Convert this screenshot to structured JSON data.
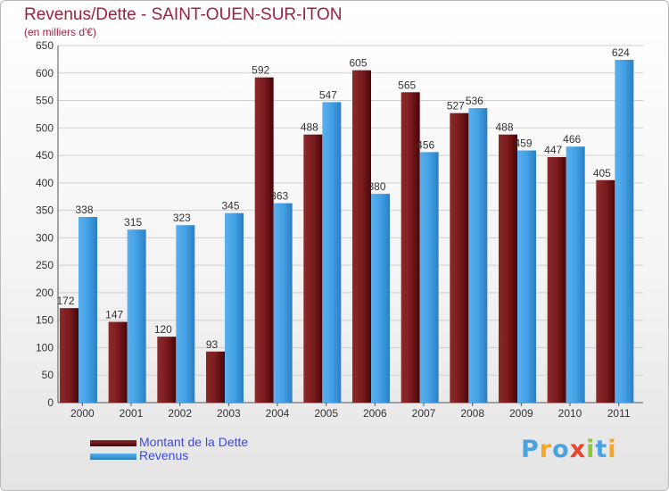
{
  "title": "Revenus/Dette - SAINT-OUEN-SUR-ITON",
  "subtitle": "(en milliers d'€)",
  "colors": {
    "dette": "#6b0f12",
    "revenus": "#3e9ae0",
    "title": "#9a2142",
    "legend_text": "#3d4bd9",
    "grid": "#cfcfcf"
  },
  "legend": {
    "dette_label": "Montant de la Dette",
    "revenus_label": "Revenus"
  },
  "logo": {
    "text": "Proxiti",
    "letters": [
      {
        "ch": "P",
        "color": "#4aa3df"
      },
      {
        "ch": "r",
        "color": "#f5a623"
      },
      {
        "ch": "o",
        "color": "#4aa3df"
      },
      {
        "ch": "x",
        "color": "#e8452c"
      },
      {
        "ch": "i",
        "color": "#8dc63f"
      },
      {
        "ch": "t",
        "color": "#4aa3df"
      },
      {
        "ch": "i",
        "color": "#f5a623"
      }
    ]
  },
  "chart_data": {
    "type": "bar",
    "categories": [
      "2000",
      "2001",
      "2002",
      "2003",
      "2004",
      "2005",
      "2006",
      "2007",
      "2008",
      "2009",
      "2010",
      "2011"
    ],
    "series": [
      {
        "name": "Montant de la Dette",
        "values": [
          172,
          147,
          120,
          93,
          592,
          488,
          605,
          565,
          527,
          488,
          447,
          405
        ]
      },
      {
        "name": "Revenus",
        "values": [
          338,
          315,
          323,
          345,
          363,
          547,
          380,
          456,
          536,
          459,
          466,
          624
        ]
      }
    ],
    "title": "Revenus/Dette - SAINT-OUEN-SUR-ITON",
    "xlabel": "",
    "ylabel": "",
    "ylim": [
      0,
      650
    ],
    "yticks": [
      0,
      50,
      100,
      150,
      200,
      250,
      300,
      350,
      400,
      450,
      500,
      550,
      600,
      650
    ],
    "grid": true,
    "legend_position": "bottom-left"
  }
}
